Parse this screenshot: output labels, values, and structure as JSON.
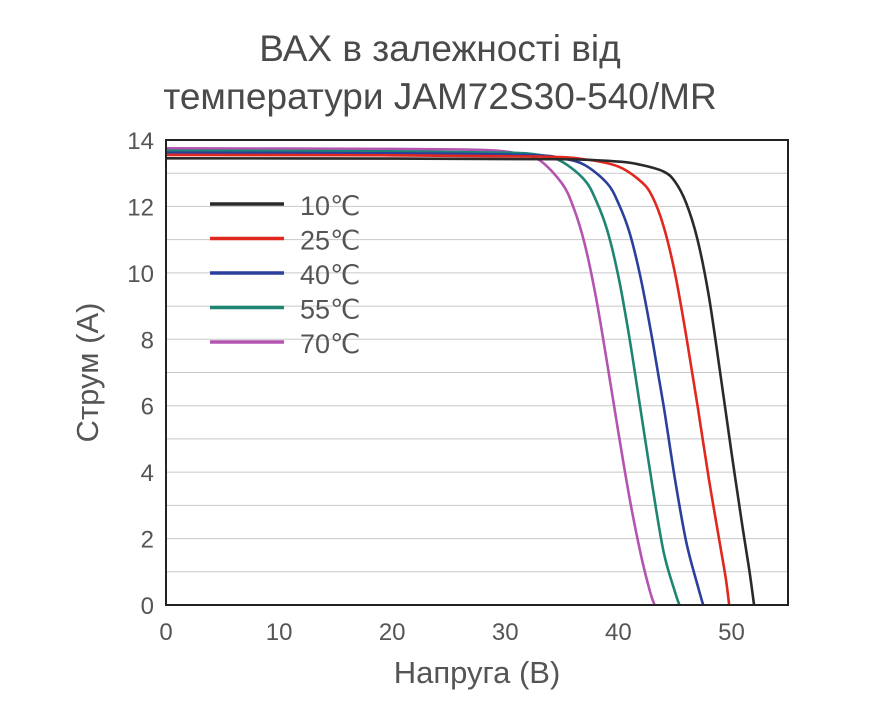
{
  "title": {
    "line1": "ВАХ в залежності від",
    "line2": "температури JAM72S30-540/MR"
  },
  "chart_data": {
    "type": "line",
    "title": "ВАХ в залежності від температури JAM72S30-540/MR",
    "xlabel": "Напруга (В)",
    "ylabel": "Струм (А)",
    "xlim": [
      0,
      55
    ],
    "ylim": [
      0,
      14
    ],
    "xticks": [
      0,
      10,
      20,
      30,
      40,
      50
    ],
    "yticks": [
      0,
      2,
      4,
      6,
      8,
      10,
      12,
      14
    ],
    "grid": "horizontal",
    "legend_position": "upper-left",
    "series": [
      {
        "name": "10℃",
        "color": "#2a2a2a",
        "points": [
          [
            0,
            13.45
          ],
          [
            20,
            13.44
          ],
          [
            35,
            13.42
          ],
          [
            40,
            13.35
          ],
          [
            42,
            13.25
          ],
          [
            44,
            13.05
          ],
          [
            45,
            12.75
          ],
          [
            46,
            12.1
          ],
          [
            47,
            11.0
          ],
          [
            48,
            9.3
          ],
          [
            49,
            7.0
          ],
          [
            50,
            4.6
          ],
          [
            51,
            2.3
          ],
          [
            51.6,
            1.0
          ],
          [
            52.0,
            0
          ]
        ]
      },
      {
        "name": "25℃",
        "color": "#e0281e",
        "points": [
          [
            0,
            13.55
          ],
          [
            20,
            13.54
          ],
          [
            33,
            13.5
          ],
          [
            37,
            13.42
          ],
          [
            40,
            13.2
          ],
          [
            42,
            12.75
          ],
          [
            43,
            12.3
          ],
          [
            44,
            11.4
          ],
          [
            45,
            10.0
          ],
          [
            46,
            8.1
          ],
          [
            47,
            6.0
          ],
          [
            48,
            3.8
          ],
          [
            49,
            1.8
          ],
          [
            49.5,
            0.8
          ],
          [
            49.8,
            0
          ]
        ]
      },
      {
        "name": "40℃",
        "color": "#2b3f9c",
        "points": [
          [
            0,
            13.62
          ],
          [
            20,
            13.6
          ],
          [
            32,
            13.55
          ],
          [
            35,
            13.45
          ],
          [
            37,
            13.25
          ],
          [
            39,
            12.7
          ],
          [
            40,
            12.1
          ],
          [
            41,
            11.2
          ],
          [
            42,
            9.8
          ],
          [
            43,
            8.0
          ],
          [
            44,
            6.0
          ],
          [
            45,
            3.8
          ],
          [
            46,
            1.9
          ],
          [
            47,
            0.6
          ],
          [
            47.5,
            0
          ]
        ]
      },
      {
        "name": "55℃",
        "color": "#1f8573",
        "points": [
          [
            0,
            13.68
          ],
          [
            20,
            13.66
          ],
          [
            30,
            13.62
          ],
          [
            33,
            13.55
          ],
          [
            35,
            13.35
          ],
          [
            37,
            12.8
          ],
          [
            38,
            12.2
          ],
          [
            39,
            11.3
          ],
          [
            40,
            9.9
          ],
          [
            41,
            8.0
          ],
          [
            42,
            5.8
          ],
          [
            43,
            3.6
          ],
          [
            44,
            1.6
          ],
          [
            45,
            0.4
          ],
          [
            45.4,
            0
          ]
        ]
      },
      {
        "name": "70℃",
        "color": "#b454b0",
        "points": [
          [
            0,
            13.75
          ],
          [
            20,
            13.73
          ],
          [
            28,
            13.7
          ],
          [
            31,
            13.6
          ],
          [
            33,
            13.4
          ],
          [
            35,
            12.7
          ],
          [
            36,
            12.0
          ],
          [
            37,
            10.9
          ],
          [
            38,
            9.3
          ],
          [
            39,
            7.3
          ],
          [
            40,
            5.2
          ],
          [
            41,
            3.2
          ],
          [
            42,
            1.5
          ],
          [
            42.8,
            0.4
          ],
          [
            43.2,
            0
          ]
        ]
      }
    ]
  }
}
